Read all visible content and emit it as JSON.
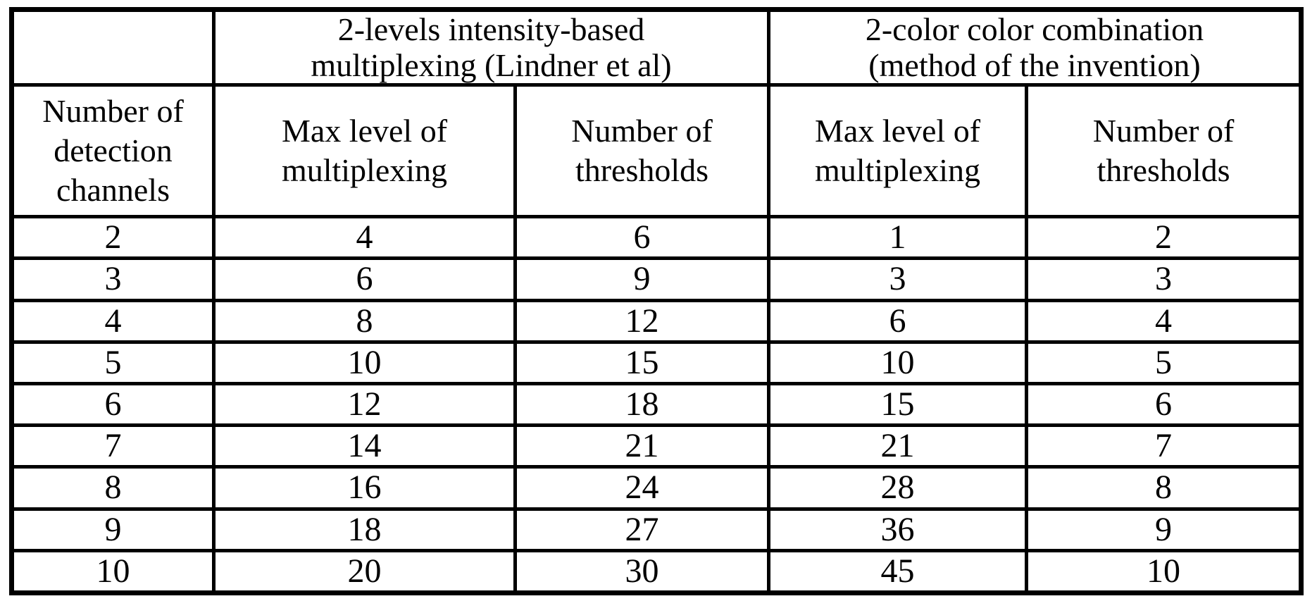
{
  "table": {
    "corner_label": "",
    "group_headers": [
      "2-levels intensity-based\nmultiplexing (Lindner et al)",
      "2-color color combination\n(method of the invention)"
    ],
    "col_headers": [
      "Number of\ndetection\nchannels",
      "Max level of\nmultiplexing",
      "Number of\nthresholds",
      "Max level of\nmultiplexing",
      "Number of\nthresholds"
    ],
    "rows": [
      [
        "2",
        "4",
        "6",
        "1",
        "2"
      ],
      [
        "3",
        "6",
        "9",
        "3",
        "3"
      ],
      [
        "4",
        "8",
        "12",
        "6",
        "4"
      ],
      [
        "5",
        "10",
        "15",
        "10",
        "5"
      ],
      [
        "6",
        "12",
        "18",
        "15",
        "6"
      ],
      [
        "7",
        "14",
        "21",
        "21",
        "7"
      ],
      [
        "8",
        "16",
        "24",
        "28",
        "8"
      ],
      [
        "9",
        "18",
        "27",
        "36",
        "9"
      ],
      [
        "10",
        "20",
        "30",
        "45",
        "10"
      ]
    ]
  },
  "colors": {
    "border": "#000000",
    "text": "#000000",
    "background": "#ffffff"
  }
}
